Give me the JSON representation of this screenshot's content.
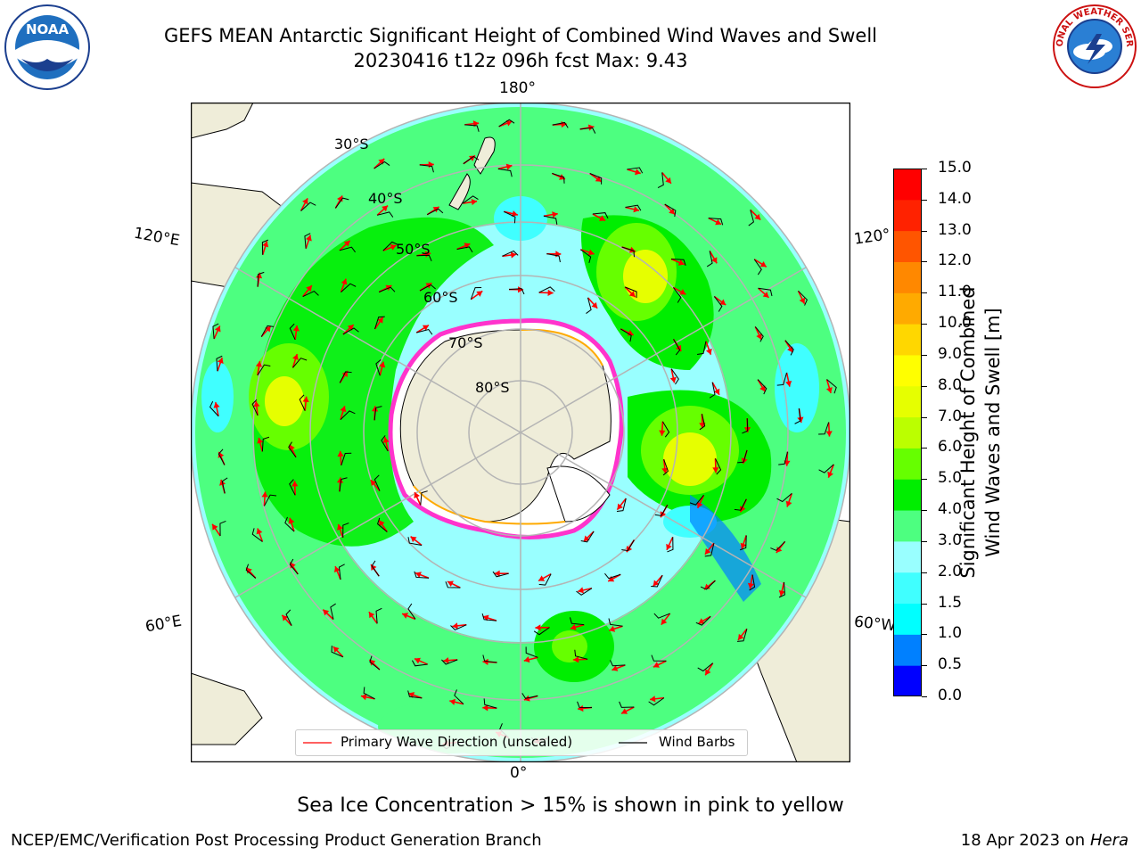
{
  "title": {
    "line1": "GEFS MEAN Antarctic Significant Height of Combined Wind Waves and Swell",
    "line2": "20230416 t12z 096h fcst   Max: 9.43"
  },
  "map": {
    "projection": "south-polar-stereographic",
    "lon_labels": {
      "top": "180°",
      "bottom": "0°",
      "left_upper": "120°E",
      "left_lower": "60°E",
      "right_upper": "120°",
      "right_lower": "60°W"
    },
    "lat_labels": [
      "30°S",
      "40°S",
      "50°S",
      "60°S",
      "70°S",
      "80°S"
    ],
    "colors": {
      "ocean_base": "#99ffff",
      "land": "#efedd9",
      "ice_interior": "#ffffff",
      "grid": "#b4b4b4",
      "arrow": "#ff0000",
      "barb": "#000000"
    }
  },
  "colorbar": {
    "label_line1": "Significant Height of Combined",
    "label_line2": "Wind Waves and Swell [m]",
    "ticks": [
      "0.0",
      "0.5",
      "1.0",
      "1.5",
      "2.0",
      "3.0",
      "4.0",
      "5.0",
      "6.0",
      "7.0",
      "8.0",
      "9.0",
      "10.0",
      "11.0",
      "12.0",
      "13.0",
      "14.0",
      "15.0"
    ],
    "colors": [
      "#0000ff",
      "#0080ff",
      "#00ffff",
      "#40ffff",
      "#99ffff",
      "#4dff80",
      "#00ee00",
      "#66ff00",
      "#bbff00",
      "#e6ff00",
      "#ffff00",
      "#ffd700",
      "#ffaa00",
      "#ff8800",
      "#ff5500",
      "#ff2200",
      "#ff0000"
    ]
  },
  "legend": {
    "wave_direction": "Primary Wave Direction (unscaled)",
    "wind_barbs": "Wind Barbs"
  },
  "caption": "Sea Ice Concentration > 15% is shown in pink to yellow",
  "footer": {
    "left": "NCEP/EMC/Verification Post Processing Product Generation Branch",
    "date": "18 Apr 2023 on ",
    "host": "Hera"
  },
  "logos": {
    "noaa": "NOAA",
    "nws": "NATIONAL WEATHER SERVICE"
  }
}
